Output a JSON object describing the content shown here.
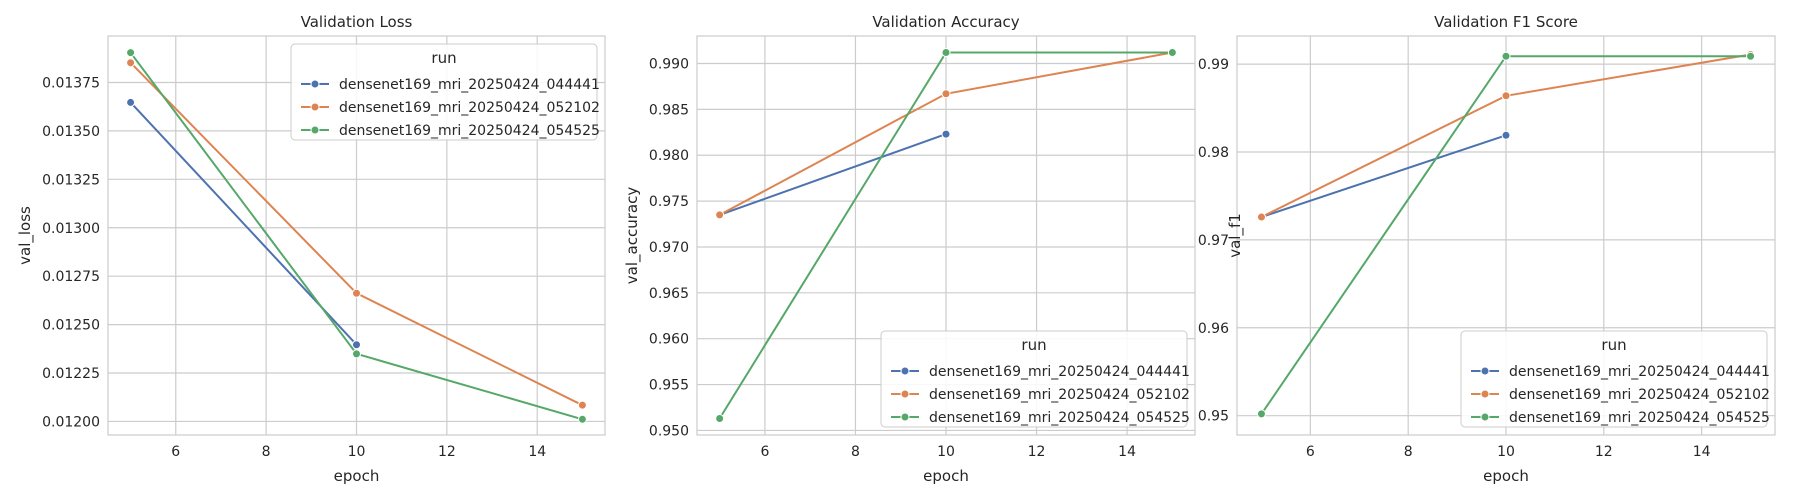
{
  "chart_data": [
    {
      "type": "line",
      "title": "Validation Loss",
      "xlabel": "epoch",
      "ylabel": "val_loss",
      "xlim": [
        4.5,
        15.5
      ],
      "ylim": [
        0.01193,
        0.01399
      ],
      "xticks": [
        "6",
        "8",
        "10",
        "12",
        "14"
      ],
      "yticks": [
        "0.01200",
        "0.01225",
        "0.01250",
        "0.01275",
        "0.01300",
        "0.01325",
        "0.01350",
        "0.01375"
      ],
      "grid": true,
      "legend": {
        "title": "run",
        "position": "upper right"
      },
      "series": [
        {
          "name": "densenet169_mri_20250424_044441",
          "color": "#4c72b0",
          "x": [
            5,
            10
          ],
          "y": [
            0.013647,
            0.012396
          ]
        },
        {
          "name": "densenet169_mri_20250424_052102",
          "color": "#dd8452",
          "x": [
            5,
            10,
            15
          ],
          "y": [
            0.013852,
            0.012662,
            0.012084
          ]
        },
        {
          "name": "densenet169_mri_20250424_054525",
          "color": "#55a868",
          "x": [
            5,
            10,
            15
          ],
          "y": [
            0.013904,
            0.012349,
            0.012011
          ]
        }
      ]
    },
    {
      "type": "line",
      "title": "Validation Accuracy",
      "xlabel": "epoch",
      "ylabel": "val_accuracy",
      "xlim": [
        4.5,
        15.5
      ],
      "ylim": [
        0.9495,
        0.993
      ],
      "xticks": [
        "6",
        "8",
        "10",
        "12",
        "14"
      ],
      "yticks": [
        "0.950",
        "0.955",
        "0.960",
        "0.965",
        "0.970",
        "0.975",
        "0.980",
        "0.985",
        "0.990"
      ],
      "grid": true,
      "legend": {
        "title": "run",
        "position": "lower right"
      },
      "series": [
        {
          "name": "densenet169_mri_20250424_044441",
          "color": "#4c72b0",
          "x": [
            5,
            10
          ],
          "y": [
            0.9735,
            0.9823
          ]
        },
        {
          "name": "densenet169_mri_20250424_052102",
          "color": "#dd8452",
          "x": [
            5,
            10,
            15
          ],
          "y": [
            0.9735,
            0.9867,
            0.9912
          ]
        },
        {
          "name": "densenet169_mri_20250424_054525",
          "color": "#55a868",
          "x": [
            5,
            10,
            15
          ],
          "y": [
            0.9513,
            0.9912,
            0.9912
          ]
        }
      ]
    },
    {
      "type": "line",
      "title": "Validation F1 Score",
      "xlabel": "epoch",
      "ylabel": "val_f1",
      "xlim": [
        4.5,
        15.5
      ],
      "ylim": [
        0.9478,
        0.9932
      ],
      "xticks": [
        "6",
        "8",
        "10",
        "12",
        "14"
      ],
      "yticks": [
        "0.95",
        "0.96",
        "0.97",
        "0.98",
        "0.99"
      ],
      "grid": true,
      "legend": {
        "title": "run",
        "position": "lower right"
      },
      "series": [
        {
          "name": "densenet169_mri_20250424_044441",
          "color": "#4c72b0",
          "x": [
            5,
            10
          ],
          "y": [
            0.9726,
            0.9819
          ]
        },
        {
          "name": "densenet169_mri_20250424_052102",
          "color": "#dd8452",
          "x": [
            5,
            10,
            15
          ],
          "y": [
            0.9726,
            0.9864,
            0.9911
          ]
        },
        {
          "name": "densenet169_mri_20250424_054525",
          "color": "#55a868",
          "x": [
            5,
            10,
            15
          ],
          "y": [
            0.9502,
            0.9909,
            0.9909
          ]
        }
      ]
    }
  ]
}
